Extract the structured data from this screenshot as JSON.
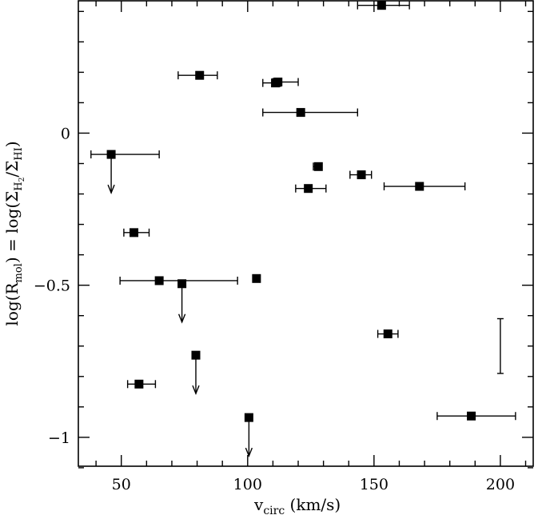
{
  "chart_data": {
    "type": "scatter",
    "title": "",
    "xlabel": "v_circ (km/s)",
    "ylabel": "log(R_mol) = log(Σ_H2/Σ_HI)",
    "xlim": [
      33,
      213
    ],
    "ylim": [
      -1.095,
      0.435
    ],
    "grid": false,
    "x_ticks": [
      50,
      100,
      150,
      200
    ],
    "x_tick_labels": [
      "50",
      "100",
      "150",
      "200"
    ],
    "y_ticks": [
      -1,
      -0.5,
      0
    ],
    "y_tick_labels": [
      "−1",
      "−0.5",
      "0"
    ],
    "points": [
      {
        "x": 153,
        "y": 0.42,
        "xerr": [
          143.5,
          164
        ]
      },
      {
        "x": 81,
        "y": 0.19,
        "xerr": [
          72.5,
          88
        ]
      },
      {
        "x": 111,
        "y": 0.165,
        "xerr": [
          106,
          113
        ]
      },
      {
        "x": 112,
        "y": 0.168,
        "xerr": [
          110,
          120
        ]
      },
      {
        "x": 121,
        "y": 0.068,
        "xerr": [
          106,
          143.5
        ]
      },
      {
        "x": 46,
        "y": -0.07,
        "xerr": [
          38,
          65
        ],
        "upper_limit": true
      },
      {
        "x": 128,
        "y": -0.11,
        "xerr": [
          126,
          129
        ]
      },
      {
        "x": 145,
        "y": -0.137,
        "xerr": [
          140.5,
          149
        ]
      },
      {
        "x": 124,
        "y": -0.182,
        "xerr": [
          119,
          131
        ]
      },
      {
        "x": 168,
        "y": -0.175,
        "xerr": [
          154,
          186
        ]
      },
      {
        "x": 55,
        "y": -0.327,
        "xerr": [
          51,
          61
        ]
      },
      {
        "x": 65,
        "y": -0.485,
        "xerr": [
          49.5,
          96
        ]
      },
      {
        "x": 74,
        "y": -0.495,
        "upper_limit": true
      },
      {
        "x": 103.5,
        "y": -0.478
      },
      {
        "x": 155.5,
        "y": -0.66,
        "xerr": [
          151.5,
          159.5
        ]
      },
      {
        "x": 79.5,
        "y": -0.73,
        "upper_limit": true
      },
      {
        "x": 57,
        "y": -0.825,
        "xerr": [
          52.5,
          63.5
        ]
      },
      {
        "x": 188.5,
        "y": -0.93,
        "xerr": [
          175,
          206
        ]
      },
      {
        "x": 100.5,
        "y": -0.935,
        "upper_limit": true
      }
    ],
    "representative_yerr": {
      "x": 200,
      "y": [
        -0.79,
        -0.61
      ]
    }
  }
}
